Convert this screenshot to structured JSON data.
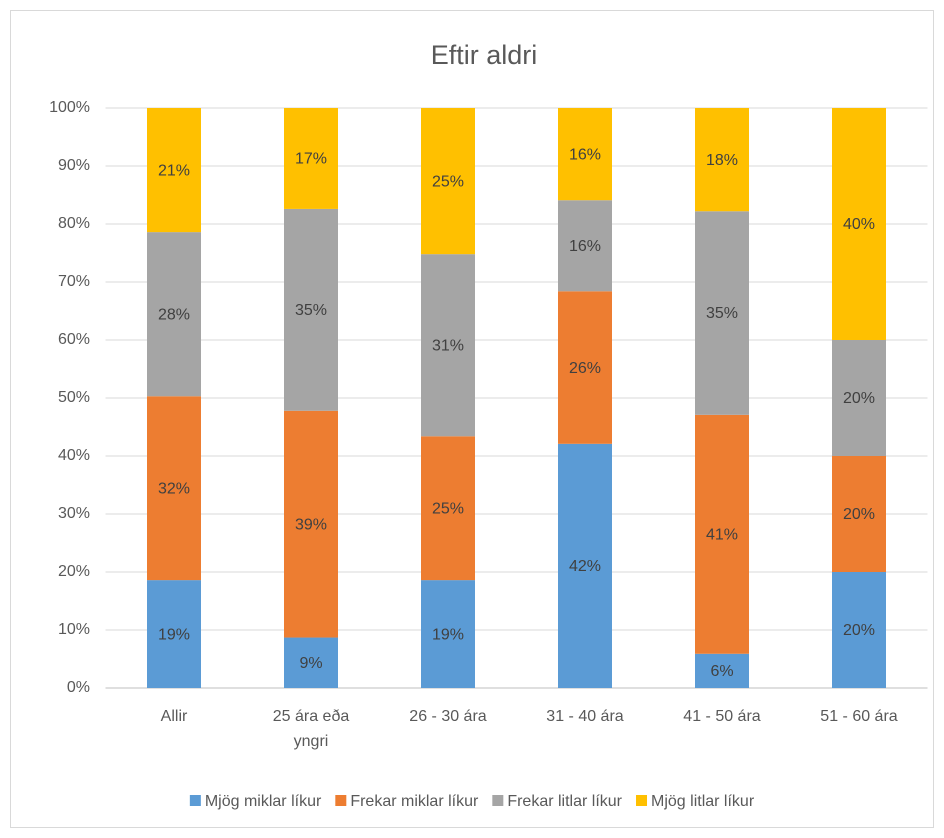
{
  "chart_data": {
    "type": "stacked_bar",
    "title": "Eftir aldri",
    "categories": [
      "Allir",
      "25 ára eða yngri",
      "26 - 30 ára",
      "31 - 40 ára",
      "41 - 50 ára",
      "51 - 60 ára"
    ],
    "series": [
      {
        "name": "Mjög miklar líkur",
        "color": "#5b9bd5",
        "values": [
          18.6,
          8.7,
          18.6,
          42.1,
          5.9,
          20
        ],
        "value_labels": [
          "19%",
          "9%",
          "19%",
          "42%",
          "6%",
          "20%"
        ]
      },
      {
        "name": "Frekar miklar líkur",
        "color": "#ed7d31",
        "values": [
          31.7,
          39.1,
          24.8,
          26.3,
          41.2,
          20
        ],
        "value_labels": [
          "32%",
          "39%",
          "25%",
          "26%",
          "41%",
          "20%"
        ]
      },
      {
        "name": "Frekar litlar líkur",
        "color": "#a5a5a5",
        "values": [
          28.3,
          34.8,
          31.4,
          15.7,
          35.1,
          20
        ],
        "value_labels": [
          "28%",
          "35%",
          "31%",
          "16%",
          "35%",
          "20%"
        ]
      },
      {
        "name": "Mjög litlar líkur",
        "color": "#ffc000",
        "values": [
          21.4,
          17.4,
          25.2,
          15.9,
          17.8,
          40
        ],
        "value_labels": [
          "21%",
          "17%",
          "25%",
          "16%",
          "18%",
          "40%"
        ]
      }
    ],
    "ylim": [
      0,
      100
    ],
    "yticks": [
      {
        "value": 0,
        "label": "0%"
      },
      {
        "value": 10,
        "label": "10%"
      },
      {
        "value": 20,
        "label": "20%"
      },
      {
        "value": 30,
        "label": "30%"
      },
      {
        "value": 40,
        "label": "40%"
      },
      {
        "value": 50,
        "label": "50%"
      },
      {
        "value": 60,
        "label": "60%"
      },
      {
        "value": 70,
        "label": "70%"
      },
      {
        "value": 80,
        "label": "80%"
      },
      {
        "value": 90,
        "label": "90%"
      },
      {
        "value": 100,
        "label": "100%"
      }
    ],
    "grid": true,
    "legend": "bottom"
  }
}
